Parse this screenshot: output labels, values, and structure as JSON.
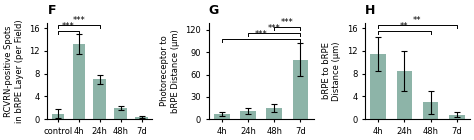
{
  "chart_data": [
    {
      "type": "bar",
      "title": "F",
      "categories": [
        "control",
        "4h",
        "24h",
        "48h",
        "7d"
      ],
      "values": [
        1.0,
        13.2,
        7.0,
        2.0,
        0.4
      ],
      "errors": [
        0.8,
        1.8,
        0.8,
        0.4,
        0.2
      ],
      "ylabel": "RCVRN-positive Spots\nin bRPE Layer (per Field)",
      "ylim": [
        0,
        17
      ],
      "yticks": [
        0,
        4,
        8,
        12,
        16
      ],
      "color": "#8db4a8",
      "brackets": [
        {
          "from": "control",
          "to": "4h",
          "y": 15.5,
          "label": "***"
        },
        {
          "from": "control",
          "to": "24h",
          "y": 16.5,
          "label": "***"
        }
      ]
    },
    {
      "type": "bar",
      "title": "G",
      "categories": [
        "4h",
        "24h",
        "48h",
        "7d"
      ],
      "values": [
        7.0,
        11.0,
        15.0,
        80.0
      ],
      "errors": [
        3.0,
        4.0,
        5.0,
        22.0
      ],
      "ylabel": "Photoreceptor to\nbRPE Distance (μm)",
      "ylim": [
        0,
        130
      ],
      "yticks": [
        0,
        30,
        60,
        90,
        120
      ],
      "color": "#8db4a8",
      "brackets": [
        {
          "from": "4h",
          "to": "7d",
          "y": 108,
          "label": "***"
        },
        {
          "from": "24h",
          "to": "7d",
          "y": 116,
          "label": "***"
        },
        {
          "from": "48h",
          "to": "7d",
          "y": 124,
          "label": "***"
        }
      ]
    },
    {
      "type": "bar",
      "title": "H",
      "categories": [
        "4h",
        "24h",
        "48h",
        "7d"
      ],
      "values": [
        11.5,
        8.5,
        3.0,
        0.8
      ],
      "errors": [
        3.0,
        3.5,
        2.0,
        0.5
      ],
      "ylabel": "bRPE to bRPE\nDistance (μm)",
      "ylim": [
        0,
        17
      ],
      "yticks": [
        0,
        4,
        8,
        12,
        16
      ],
      "color": "#8db4a8",
      "brackets": [
        {
          "from": "4h",
          "to": "48h",
          "y": 15.5,
          "label": "**"
        },
        {
          "from": "4h",
          "to": "7d",
          "y": 16.5,
          "label": "**"
        }
      ]
    }
  ]
}
